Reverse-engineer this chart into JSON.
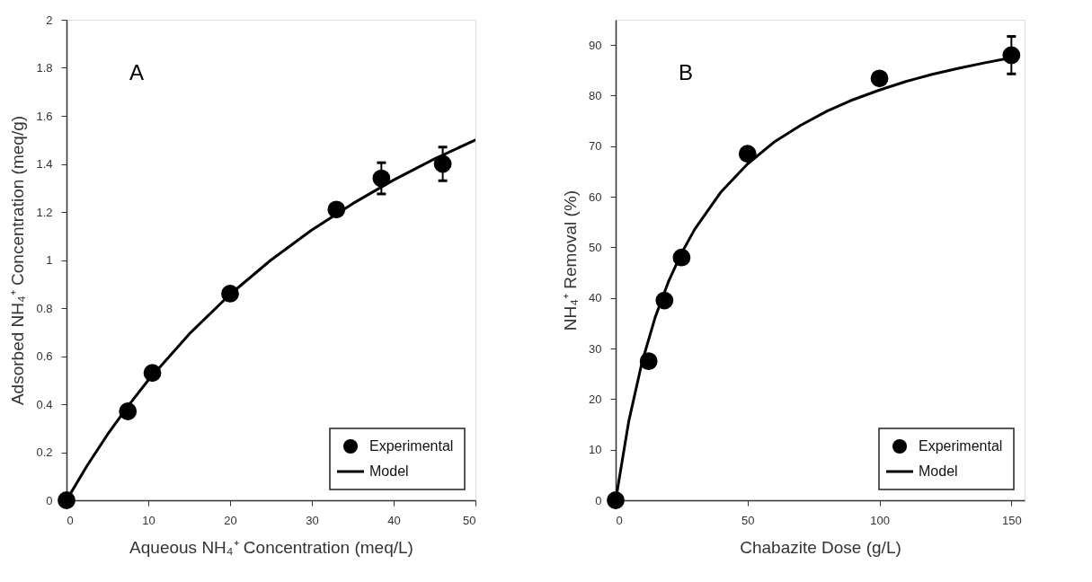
{
  "chart_data": [
    {
      "type": "scatter",
      "xlabel": "Aqueous NH₄⁺ Concentration  (meq/L)",
      "ylabel": "Adsorbed NH₄⁺ Concentration (meq/g)",
      "annotations": [
        "A"
      ],
      "xlim": [
        0,
        50
      ],
      "xticks": [
        0,
        10,
        20,
        30,
        40,
        50
      ],
      "ylim": [
        0,
        2
      ],
      "yticks": [
        0,
        0.2,
        0.4,
        0.6,
        0.8,
        1,
        1.2,
        1.4,
        1.6,
        1.8,
        2
      ],
      "grid": false,
      "legend": "bottom right",
      "series": [
        {
          "name": "Experimental",
          "marker": "circle",
          "color": "#000000",
          "x": [
            0,
            7.5,
            10.5,
            20,
            33,
            38.5,
            46
          ],
          "values": [
            0,
            0.37,
            0.53,
            0.86,
            1.21,
            1.34,
            1.4
          ],
          "errors": [
            null,
            null,
            null,
            null,
            null,
            0.065,
            0.07
          ]
        },
        {
          "name": "Model",
          "type": "line",
          "line_style": "solid",
          "color": "#000000",
          "x": [
            0,
            2.5,
            5,
            7.5,
            10,
            15,
            20,
            25,
            30,
            35,
            40,
            45,
            50
          ],
          "values": [
            0,
            0.143,
            0.273,
            0.391,
            0.5,
            0.692,
            0.857,
            1.0,
            1.125,
            1.235,
            1.333,
            1.421,
            1.5
          ]
        }
      ]
    },
    {
      "type": "scatter",
      "xlabel": "Chabazite Dose (g/L)",
      "ylabel": "NH₄⁺ Removal (%)",
      "annotations": [
        "B"
      ],
      "xlim": [
        0,
        155
      ],
      "xticks": [
        0,
        50,
        100,
        150
      ],
      "ylim": [
        0,
        95
      ],
      "yticks": [
        0,
        10,
        20,
        30,
        40,
        50,
        60,
        70,
        80,
        90
      ],
      "grid": false,
      "legend": "bottom right",
      "series": [
        {
          "name": "Experimental",
          "marker": "circle",
          "color": "#000000",
          "x": [
            0,
            12.5,
            18.5,
            25,
            50,
            100,
            150
          ],
          "values": [
            0,
            27.5,
            39.5,
            48,
            68.5,
            83.4,
            88
          ],
          "errors": [
            null,
            null,
            null,
            null,
            null,
            null,
            3.7
          ]
        },
        {
          "name": "Model",
          "type": "line",
          "line_style": "solid",
          "color": "#000000",
          "x": [
            0,
            5,
            10,
            15,
            20,
            25,
            30,
            40,
            50,
            60,
            70,
            80,
            90,
            100,
            110,
            120,
            130,
            140,
            150
          ],
          "values": [
            0,
            15.7,
            27.3,
            36.2,
            43.2,
            48.9,
            53.6,
            61.0,
            66.5,
            70.8,
            74.1,
            76.9,
            79.2,
            81.1,
            82.8,
            84.2,
            85.4,
            86.5,
            87.5
          ]
        }
      ]
    }
  ]
}
